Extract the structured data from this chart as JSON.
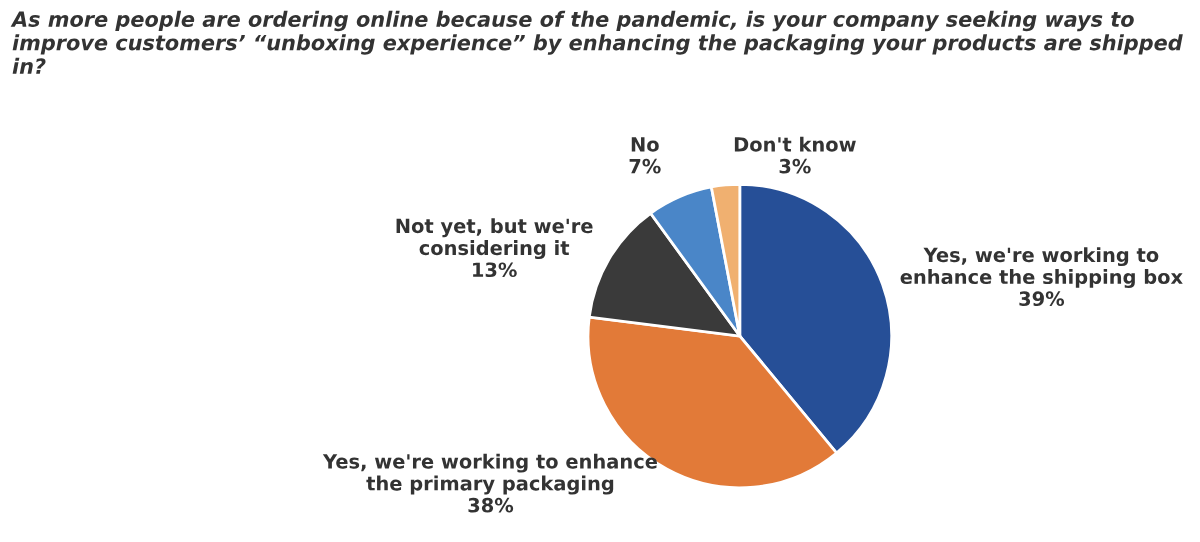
{
  "chart_data": {
    "type": "pie",
    "title": "As more people are ordering online because of the pandemic, is your company seeking ways to improve customers’ “unboxing experience” by enhancing the packaging your products are shipped in?",
    "categories": [
      "Yes, we're working to\nenhance the shipping box",
      "Yes, we're working to enhance\nthe primary packaging",
      "Not yet, but we're\nconsidering it",
      "No",
      "Don't know"
    ],
    "values": [
      39,
      38,
      13,
      7,
      3
    ],
    "value_labels": [
      "39%",
      "38%",
      "13%",
      "7%",
      "3%"
    ],
    "colors": [
      "#264f97",
      "#e27a38",
      "#3a3a3a",
      "#4a86c8",
      "#f0b070"
    ],
    "legend": false
  }
}
